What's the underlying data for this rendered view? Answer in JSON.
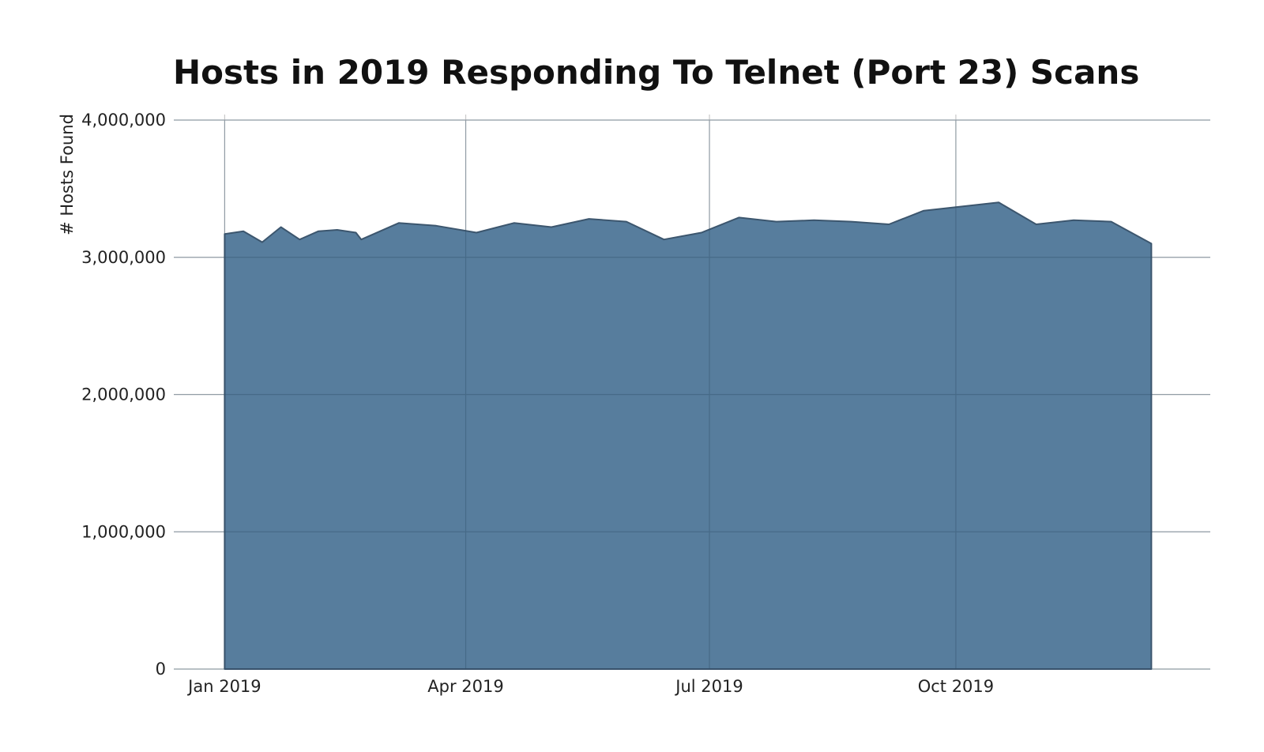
{
  "chart_data": {
    "type": "area",
    "title": "Hosts in 2019 Responding To Telnet (Port 23) Scans",
    "xlabel": "",
    "ylabel": "# Hosts Found",
    "x_axis": "date",
    "xlim": [
      "2018-12-13",
      "2020-01-04"
    ],
    "ylim": [
      0,
      4000000
    ],
    "grid": true,
    "legend": "none",
    "color": "#547a9b",
    "line_color": "#3c566e",
    "y_ticks": [
      {
        "value": 0,
        "label": "0"
      },
      {
        "value": 1000000,
        "label": "1,000,000"
      },
      {
        "value": 2000000,
        "label": "2,000,000"
      },
      {
        "value": 3000000,
        "label": "3,000,000"
      },
      {
        "value": 4000000,
        "label": "4,000,000"
      }
    ],
    "x_ticks": [
      {
        "value": "2019-01-01",
        "label": "Jan 2019"
      },
      {
        "value": "2019-04-01",
        "label": "Apr 2019"
      },
      {
        "value": "2019-07-01",
        "label": "Jul 2019"
      },
      {
        "value": "2019-10-01",
        "label": "Oct 2019"
      }
    ],
    "series": [
      {
        "x": [
          "2019-01-01",
          "2019-01-08",
          "2019-01-15",
          "2019-01-22",
          "2019-01-29",
          "2019-02-05",
          "2019-02-12",
          "2019-02-19",
          "2019-02-21",
          "2019-03-07",
          "2019-03-21",
          "2019-04-05",
          "2019-04-19",
          "2019-05-03",
          "2019-05-17",
          "2019-05-31",
          "2019-06-14",
          "2019-06-28",
          "2019-07-12",
          "2019-07-26",
          "2019-08-09",
          "2019-08-23",
          "2019-09-06",
          "2019-09-19",
          "2019-10-17",
          "2019-10-31",
          "2019-11-14",
          "2019-11-28",
          "2019-12-13"
        ],
        "values": [
          3170000,
          3190000,
          3110000,
          3220000,
          3130000,
          3190000,
          3200000,
          3180000,
          3130000,
          3250000,
          3230000,
          3180000,
          3250000,
          3220000,
          3280000,
          3260000,
          3130000,
          3180000,
          3290000,
          3260000,
          3270000,
          3260000,
          3240000,
          3340000,
          3400000,
          3240000,
          3270000,
          3260000,
          3100000
        ]
      }
    ]
  }
}
